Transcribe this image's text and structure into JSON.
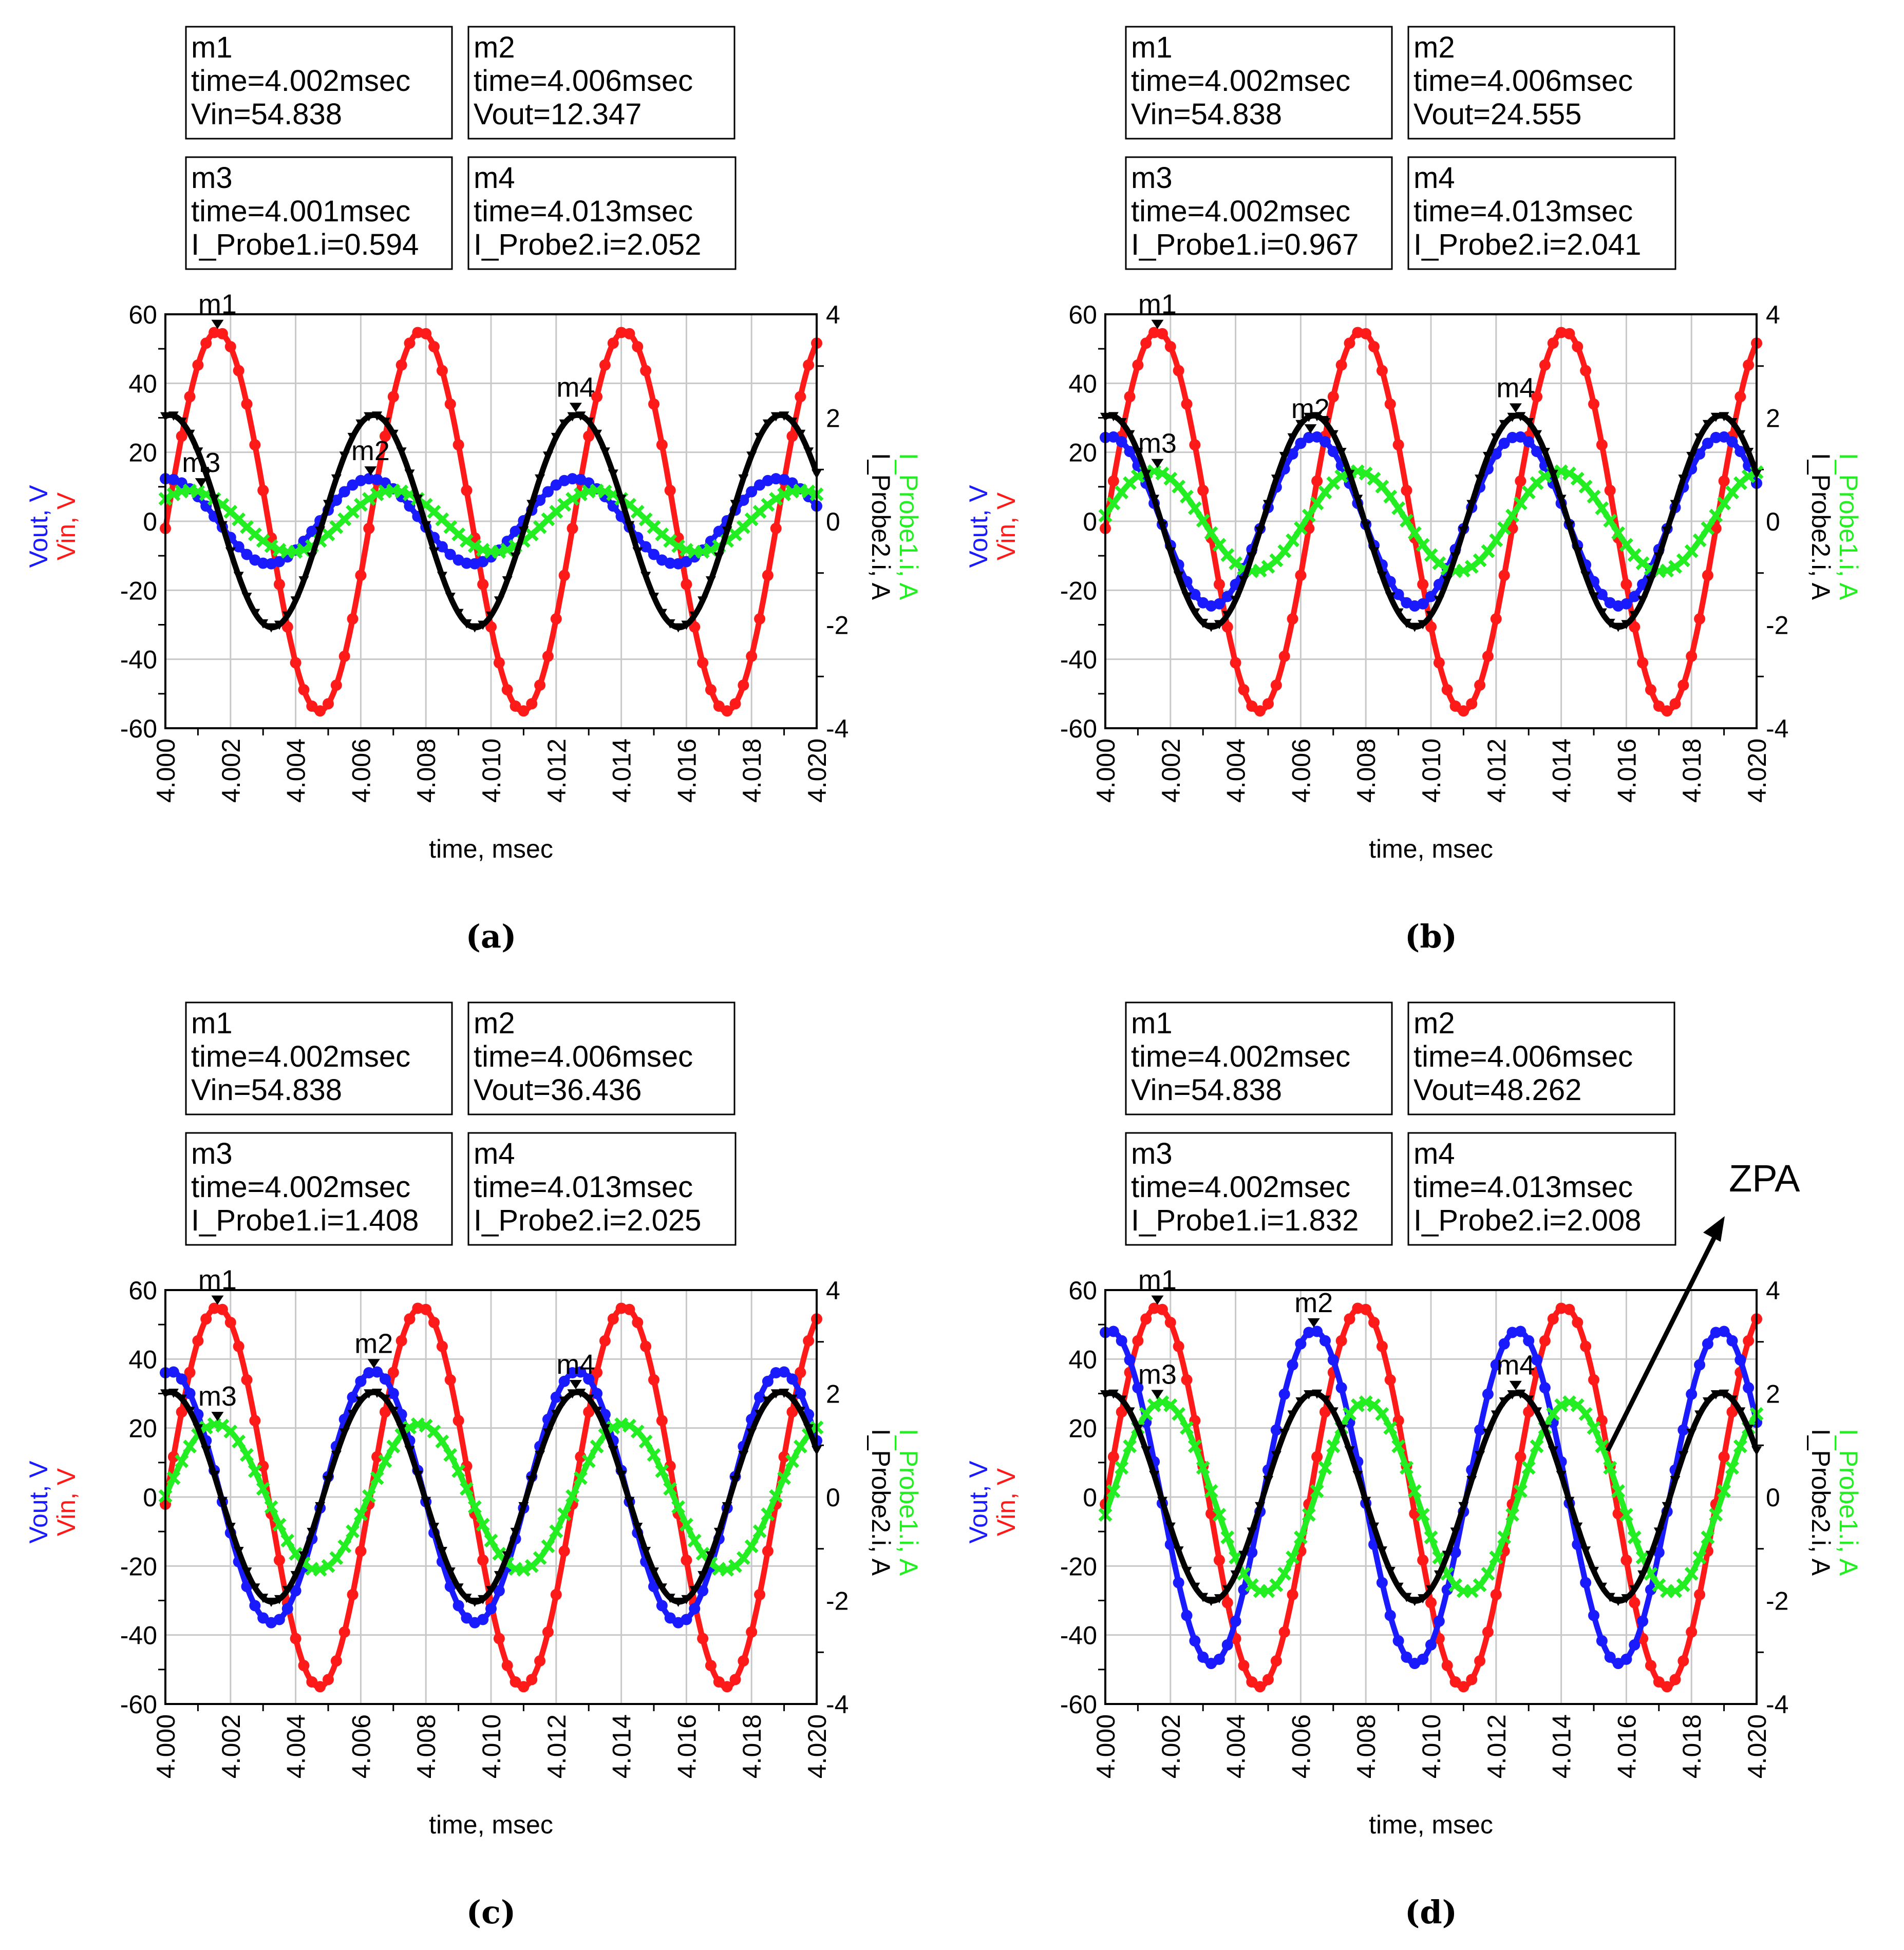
{
  "figure": {
    "annotation": {
      "label": "ZPA"
    }
  },
  "colors": {
    "vin": "#ff1a1a",
    "vout": "#1a1aff",
    "i_probe1": "#22ee22",
    "i_probe2": "#000000",
    "grid": "#c8c8c8",
    "frame": "#000000"
  },
  "chart_data": [
    {
      "type": "line",
      "caption": "(a)",
      "xlabel": "time, msec",
      "ylabel_left": [
        "Vout, V",
        "Vin, V"
      ],
      "ylabel_right": [
        "I_Probe2.i, A",
        "I_Probe1.i, A"
      ],
      "xlim": [
        4.0,
        4.02
      ],
      "ylim_left": [
        -60,
        60
      ],
      "ylim_right": [
        -4,
        4
      ],
      "x_ticks": [
        "4.000",
        "4.002",
        "4.004",
        "4.006",
        "4.008",
        "4.010",
        "4.012",
        "4.014",
        "4.016",
        "4.018",
        "4.020"
      ],
      "y_ticks_left": [
        "60",
        "40",
        "20",
        "0",
        "-20",
        "-40",
        "-60"
      ],
      "y_ticks_right": [
        "4",
        "2",
        "0",
        "-2",
        "-4"
      ],
      "series": [
        {
          "name": "Vin",
          "axis": "left",
          "amplitude": 55,
          "period": 0.00625,
          "peak_time": 4.0016,
          "marker": "dot",
          "color_key": "vin"
        },
        {
          "name": "Vout",
          "axis": "left",
          "amplitude": 12.35,
          "period": 0.00625,
          "peak_time": 4.0063,
          "marker": "dot",
          "color_key": "vout"
        },
        {
          "name": "I_Probe1.i",
          "axis": "right",
          "amplitude": 0.594,
          "period": 0.00625,
          "peak_time": 4.007,
          "marker": "x",
          "color_key": "i_probe1"
        },
        {
          "name": "I_Probe2.i",
          "axis": "right",
          "amplitude": 2.052,
          "period": 0.00625,
          "peak_time": 4.0064,
          "marker": "tri",
          "color_key": "i_probe2"
        }
      ],
      "markers": [
        {
          "label": "m1",
          "time": 4.0016,
          "axis": "left",
          "value": 54.838
        },
        {
          "label": "m2",
          "time": 4.0063,
          "axis": "left",
          "value": 12.347
        },
        {
          "label": "m3",
          "time": 4.0011,
          "axis": "right",
          "value": 0.594
        },
        {
          "label": "m4",
          "time": 4.0126,
          "axis": "right",
          "value": 2.052
        }
      ],
      "marker_boxes": [
        [
          "m1",
          "time=4.002msec",
          "Vin=54.838"
        ],
        [
          "m2",
          "time=4.006msec",
          "Vout=12.347"
        ],
        [
          "m3",
          "time=4.001msec",
          "I_Probe1.i=0.594"
        ],
        [
          "m4",
          "time=4.013msec",
          "I_Probe2.i=2.052"
        ]
      ]
    },
    {
      "type": "line",
      "caption": "(b)",
      "xlabel": "time, msec",
      "ylabel_left": [
        "Vout, V",
        "Vin, V"
      ],
      "ylabel_right": [
        "I_Probe2.i, A",
        "I_Probe1.i, A"
      ],
      "xlim": [
        4.0,
        4.02
      ],
      "ylim_left": [
        -60,
        60
      ],
      "ylim_right": [
        -4,
        4
      ],
      "x_ticks": [
        "4.000",
        "4.002",
        "4.004",
        "4.006",
        "4.008",
        "4.010",
        "4.012",
        "4.014",
        "4.016",
        "4.018",
        "4.020"
      ],
      "y_ticks_left": [
        "60",
        "40",
        "20",
        "0",
        "-20",
        "-40",
        "-60"
      ],
      "y_ticks_right": [
        "4",
        "2",
        "0",
        "-2",
        "-4"
      ],
      "series": [
        {
          "name": "Vin",
          "axis": "left",
          "amplitude": 55,
          "period": 0.00625,
          "peak_time": 4.0016,
          "marker": "dot",
          "color_key": "vin"
        },
        {
          "name": "Vout",
          "axis": "left",
          "amplitude": 24.56,
          "period": 0.00625,
          "peak_time": 4.0064,
          "marker": "dot",
          "color_key": "vout"
        },
        {
          "name": "I_Probe1.i",
          "axis": "right",
          "amplitude": 0.967,
          "period": 0.00625,
          "peak_time": 4.0077,
          "marker": "x",
          "color_key": "i_probe1"
        },
        {
          "name": "I_Probe2.i",
          "axis": "right",
          "amplitude": 2.041,
          "period": 0.00625,
          "peak_time": 4.0064,
          "marker": "tri",
          "color_key": "i_probe2"
        }
      ],
      "markers": [
        {
          "label": "m1",
          "time": 4.0016,
          "axis": "left",
          "value": 54.838
        },
        {
          "label": "m2",
          "time": 4.0063,
          "axis": "left",
          "value": 24.555
        },
        {
          "label": "m3",
          "time": 4.0016,
          "axis": "right",
          "value": 0.967
        },
        {
          "label": "m4",
          "time": 4.0126,
          "axis": "right",
          "value": 2.041
        }
      ],
      "marker_boxes": [
        [
          "m1",
          "time=4.002msec",
          "Vin=54.838"
        ],
        [
          "m2",
          "time=4.006msec",
          "Vout=24.555"
        ],
        [
          "m3",
          "time=4.002msec",
          "I_Probe1.i=0.967"
        ],
        [
          "m4",
          "time=4.013msec",
          "I_Probe2.i=2.041"
        ]
      ]
    },
    {
      "type": "line",
      "caption": "(c)",
      "xlabel": "time, msec",
      "ylabel_left": [
        "Vout, V",
        "Vin, V"
      ],
      "ylabel_right": [
        "I_Probe2.i, A",
        "I_Probe1.i, A"
      ],
      "xlim": [
        4.0,
        4.02
      ],
      "ylim_left": [
        -60,
        60
      ],
      "ylim_right": [
        -4,
        4
      ],
      "x_ticks": [
        "4.000",
        "4.002",
        "4.004",
        "4.006",
        "4.008",
        "4.010",
        "4.012",
        "4.014",
        "4.016",
        "4.018",
        "4.020"
      ],
      "y_ticks_left": [
        "60",
        "40",
        "20",
        "0",
        "-20",
        "-40",
        "-60"
      ],
      "y_ticks_right": [
        "4",
        "2",
        "0",
        "-2",
        "-4"
      ],
      "series": [
        {
          "name": "Vin",
          "axis": "left",
          "amplitude": 55,
          "period": 0.00625,
          "peak_time": 4.0016,
          "marker": "dot",
          "color_key": "vin"
        },
        {
          "name": "Vout",
          "axis": "left",
          "amplitude": 36.44,
          "period": 0.00625,
          "peak_time": 4.0064,
          "marker": "dot",
          "color_key": "vout"
        },
        {
          "name": "I_Probe1.i",
          "axis": "right",
          "amplitude": 1.408,
          "period": 0.00625,
          "peak_time": 4.0078,
          "marker": "x",
          "color_key": "i_probe1"
        },
        {
          "name": "I_Probe2.i",
          "axis": "right",
          "amplitude": 2.025,
          "period": 0.00625,
          "peak_time": 4.0064,
          "marker": "tri",
          "color_key": "i_probe2"
        }
      ],
      "markers": [
        {
          "label": "m1",
          "time": 4.0016,
          "axis": "left",
          "value": 54.838
        },
        {
          "label": "m2",
          "time": 4.0064,
          "axis": "left",
          "value": 36.436
        },
        {
          "label": "m3",
          "time": 4.0016,
          "axis": "right",
          "value": 1.408
        },
        {
          "label": "m4",
          "time": 4.0126,
          "axis": "right",
          "value": 2.025
        }
      ],
      "marker_boxes": [
        [
          "m1",
          "time=4.002msec",
          "Vin=54.838"
        ],
        [
          "m2",
          "time=4.006msec",
          "Vout=36.436"
        ],
        [
          "m3",
          "time=4.002msec",
          "I_Probe1.i=1.408"
        ],
        [
          "m4",
          "time=4.013msec",
          "I_Probe2.i=2.025"
        ]
      ]
    },
    {
      "type": "line",
      "caption": "(d)",
      "xlabel": "time, msec",
      "ylabel_left": [
        "Vout, V",
        "Vin, V"
      ],
      "ylabel_right": [
        "I_Probe2.i, A",
        "I_Probe1.i, A"
      ],
      "xlim": [
        4.0,
        4.02
      ],
      "ylim_left": [
        -60,
        60
      ],
      "ylim_right": [
        -4,
        4
      ],
      "x_ticks": [
        "4.000",
        "4.002",
        "4.004",
        "4.006",
        "4.008",
        "4.010",
        "4.012",
        "4.014",
        "4.016",
        "4.018",
        "4.020"
      ],
      "y_ticks_left": [
        "60",
        "40",
        "20",
        "0",
        "-20",
        "-40",
        "-60"
      ],
      "y_ticks_right": [
        "4",
        "2",
        "0",
        "-2",
        "-4"
      ],
      "series": [
        {
          "name": "Vin",
          "axis": "left",
          "amplitude": 55,
          "period": 0.00625,
          "peak_time": 4.0016,
          "marker": "dot",
          "color_key": "vin"
        },
        {
          "name": "Vout",
          "axis": "left",
          "amplitude": 48.26,
          "period": 0.00625,
          "peak_time": 4.0064,
          "marker": "dot",
          "color_key": "vout"
        },
        {
          "name": "I_Probe1.i",
          "axis": "right",
          "amplitude": 1.832,
          "period": 0.00625,
          "peak_time": 4.008,
          "marker": "x",
          "color_key": "i_probe1"
        },
        {
          "name": "I_Probe2.i",
          "axis": "right",
          "amplitude": 2.008,
          "period": 0.00625,
          "peak_time": 4.0064,
          "marker": "tri",
          "color_key": "i_probe2"
        }
      ],
      "markers": [
        {
          "label": "m1",
          "time": 4.0016,
          "axis": "left",
          "value": 54.838
        },
        {
          "label": "m2",
          "time": 4.0064,
          "axis": "left",
          "value": 48.262
        },
        {
          "label": "m3",
          "time": 4.0016,
          "axis": "right",
          "value": 1.832
        },
        {
          "label": "m4",
          "time": 4.0126,
          "axis": "right",
          "value": 2.008
        }
      ],
      "marker_boxes": [
        [
          "m1",
          "time=4.002msec",
          "Vin=54.838"
        ],
        [
          "m2",
          "time=4.006msec",
          "Vout=48.262"
        ],
        [
          "m3",
          "time=4.002msec",
          "I_Probe1.i=1.832"
        ],
        [
          "m4",
          "time=4.013msec",
          "I_Probe2.i=2.008"
        ]
      ]
    }
  ]
}
